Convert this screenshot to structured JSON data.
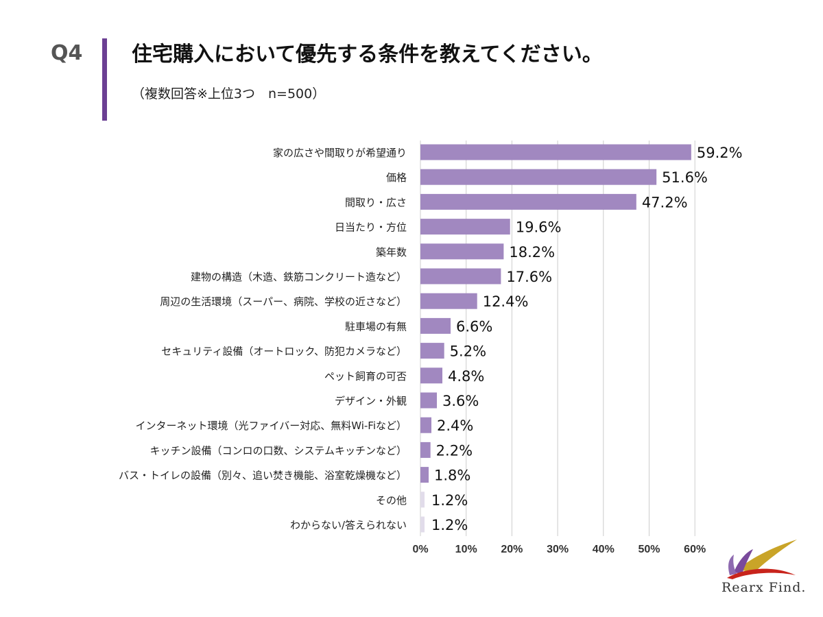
{
  "header": {
    "question_number": "Q4",
    "title": "住宅購入において優先する条件を教えてください。",
    "subtitle": "（複数回答※上位3つ　n=500）"
  },
  "colors": {
    "accent": "#6b3f93",
    "bar": "#a188c0",
    "bar_light": "#e1dcea",
    "grid": "#cccccc"
  },
  "chart_data": {
    "type": "bar",
    "orientation": "horizontal",
    "categories": [
      "家の広さや間取りが希望通り",
      "価格",
      "間取り・広さ",
      "日当たり・方位",
      "築年数",
      "建物の構造（木造、鉄筋コンクリート造など）",
      "周辺の生活環境（スーパー、病院、学校の近さなど）",
      "駐車場の有無",
      "セキュリティ設備（オートロック、防犯カメラなど）",
      "ペット飼育の可否",
      "デザイン・外観",
      "インターネット環境（光ファイバー対応、無料Wi-Fiなど）",
      "キッチン設備（コンロの口数、システムキッチンなど）",
      "バス・トイレの設備（別々、追い焚き機能、浴室乾燥機など）",
      "その他",
      "わからない/答えられない"
    ],
    "values": [
      59.2,
      51.6,
      47.2,
      19.6,
      18.2,
      17.6,
      12.4,
      6.6,
      5.2,
      4.8,
      3.6,
      2.4,
      2.2,
      1.8,
      1.2,
      1.2
    ],
    "value_labels": [
      "59.2%",
      "51.6%",
      "47.2%",
      "19.6%",
      "18.2%",
      "17.6%",
      "12.4%",
      "6.6%",
      "5.2%",
      "4.8%",
      "3.6%",
      "2.4%",
      "2.2%",
      "1.8%",
      "1.2%",
      "1.2%"
    ],
    "light_bars": [
      "その他",
      "わからない/答えられない"
    ],
    "xlim": [
      0,
      60
    ],
    "xticks": [
      0,
      10,
      20,
      30,
      40,
      50,
      60
    ],
    "xtick_labels": [
      "0%",
      "10%",
      "20%",
      "30%",
      "40%",
      "50%",
      "60%"
    ],
    "grid": true,
    "legend": "none"
  },
  "logo": {
    "text": "Rearx Find."
  }
}
